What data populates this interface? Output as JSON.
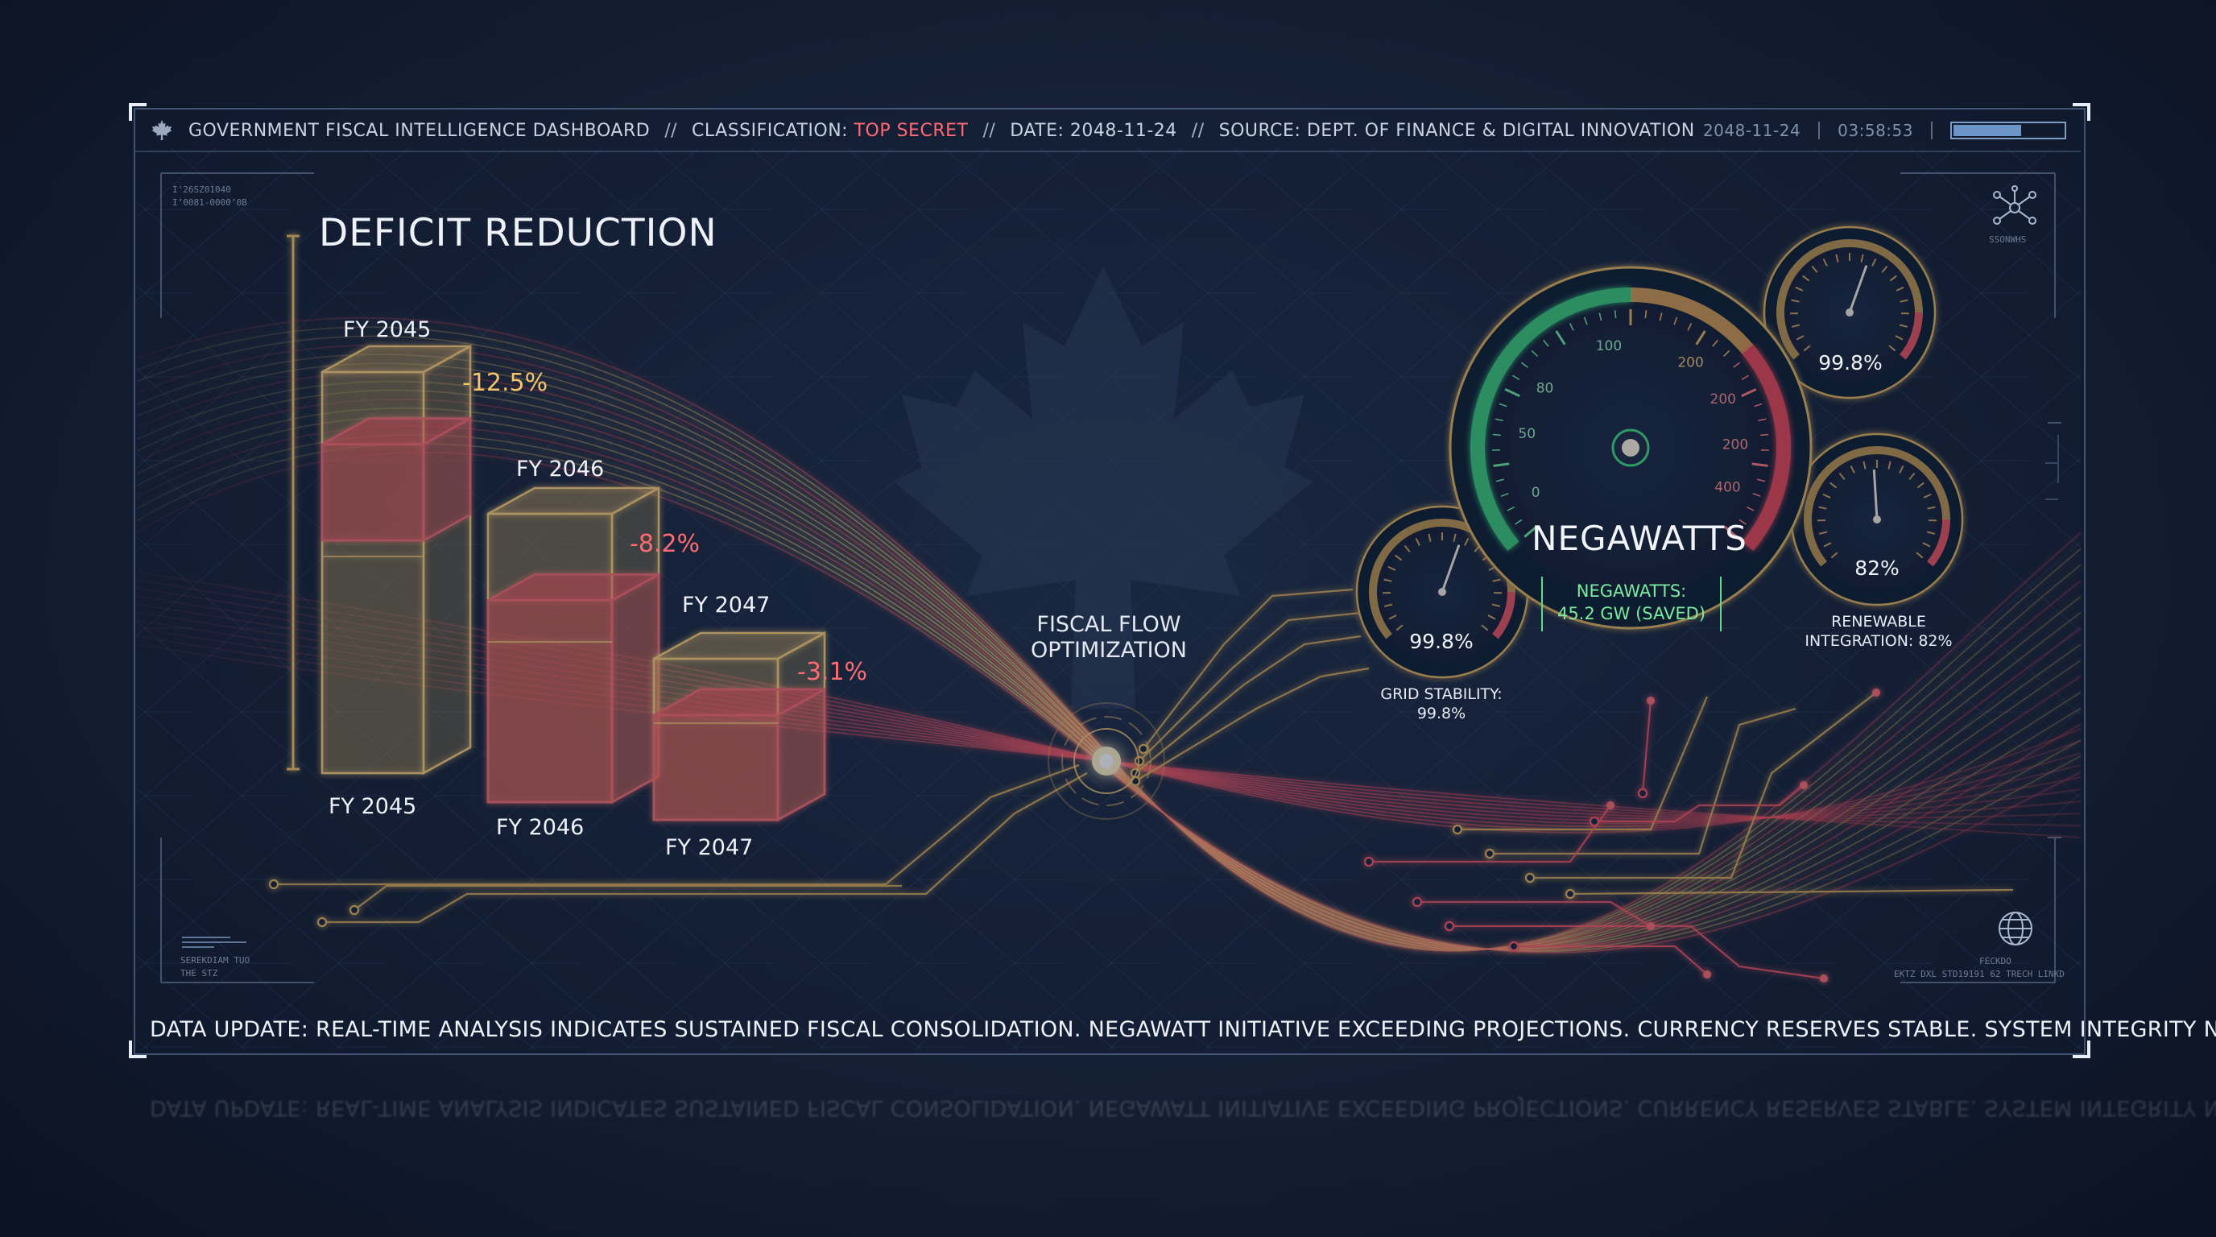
{
  "header": {
    "dashboard_title": "GOVERNMENT FISCAL INTELLIGENCE DASHBOARD",
    "separator": "//",
    "classification_label": "CLASSIFICATION:",
    "classification_value": "TOP SECRET",
    "date_label": "DATE: 2048-11-24",
    "source_label": "SOURCE: DEPT. OF FINANCE & DIGITAL INNOVATION",
    "right_date": "2048-11-24",
    "right_time": "03:58:53",
    "progress_fraction": 0.62
  },
  "corner_text": {
    "top_left": "I'26SZ01040\nIʼ0081-0000ʼ0B",
    "top_right": "SSONWHS",
    "bottom_left": "SEREKDIAM TUO\nTHE STZ",
    "bottom_right_top": "FECKDO",
    "bottom_right": "EKTZ DXL STD19191 62 TRECH LINKD"
  },
  "deficit": {
    "title": "DEFICIT REDUCTION",
    "bars": [
      {
        "top_label": "FY 2045",
        "bottom_label": "FY 2045",
        "change": "-12.5%"
      },
      {
        "top_label": "FY 2046",
        "bottom_label": "FY 2046",
        "change": "-8.2%"
      },
      {
        "top_label": "FY 2047",
        "bottom_label": "FY 2047",
        "change": "-3.1%"
      }
    ]
  },
  "flow": {
    "label_line1": "FISCAL FLOW",
    "label_line2": "OPTIMIZATION"
  },
  "negawatts": {
    "title": "NEGAWATTS",
    "box_line1": "NEGAWATTS:",
    "box_line2": "45.2 GW (SAVED)",
    "main_gauge_ticks": [
      "0",
      "50",
      "80",
      "100",
      "200",
      "200",
      "200",
      "400"
    ],
    "main_gauge_level": 0.5
  },
  "gauges": {
    "grid": {
      "value": "99.8%",
      "caption_line1": "GRID STABILITY:",
      "caption_line2": "99.8%",
      "level": 0.998
    },
    "top_right": {
      "value": "99.8%",
      "level": 0.998
    },
    "renewable": {
      "value": "82%",
      "caption_line1": "RENEWABLE",
      "caption_line2": "INTEGRATION: 82%",
      "level": 0.82
    }
  },
  "footer": {
    "text": "DATA UPDATE: REAL-TIME ANALYSIS INDICATES SUSTAINED FISCAL CONSOLIDATION. NEGAWATT INITIATIVE EXCEEDING PROJECTIONS. CURRENCY RESERVES STABLE. SYSTEM INTEGRITY NOMINAL."
  },
  "colors": {
    "gold": "#f3c46a",
    "red": "#ff5a63",
    "green": "#4ee08a",
    "frame": "#9db4d6"
  },
  "icons": {
    "header_icon": "maple-leaf-icon",
    "top_right_icon": "network-hub-icon",
    "bottom_right_icon": "globe-icon"
  }
}
